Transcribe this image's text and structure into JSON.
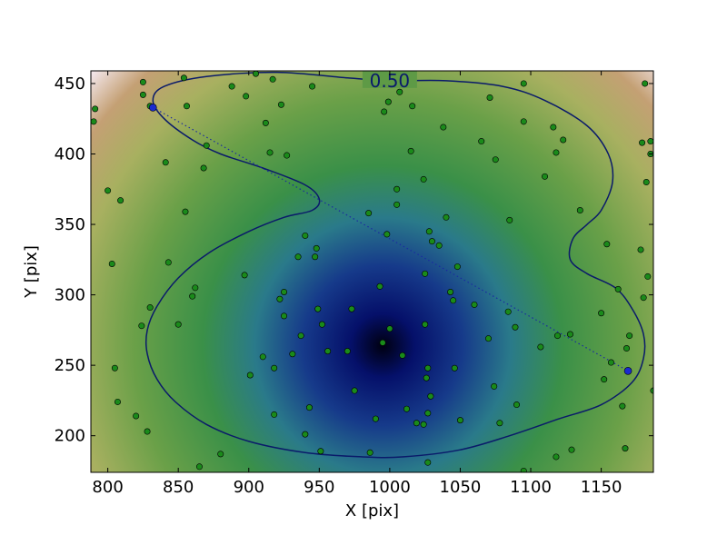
{
  "chart_data": {
    "type": "scatter",
    "title": "",
    "xlabel": "X [pix]",
    "ylabel": "Y [pix]",
    "xlim": [
      788,
      1187
    ],
    "ylim": [
      174,
      459
    ],
    "xticks": [
      800,
      850,
      900,
      950,
      1000,
      1050,
      1100,
      1150
    ],
    "yticks": [
      200,
      250,
      300,
      350,
      400,
      450
    ],
    "grid": false,
    "legend": "none",
    "colormap": "gist_earth",
    "background_minimum": [
      995,
      264
    ],
    "contour": {
      "level_label": "0.50",
      "color": "#0a1a6a",
      "path": [
        [
          1000,
          452
        ],
        [
          1040,
          452
        ],
        [
          1080,
          448
        ],
        [
          1110,
          438
        ],
        [
          1140,
          420
        ],
        [
          1155,
          400
        ],
        [
          1158,
          380
        ],
        [
          1150,
          360
        ],
        [
          1140,
          350
        ],
        [
          1130,
          340
        ],
        [
          1128,
          325
        ],
        [
          1140,
          315
        ],
        [
          1160,
          305
        ],
        [
          1172,
          290
        ],
        [
          1180,
          272
        ],
        [
          1180,
          255
        ],
        [
          1172,
          238
        ],
        [
          1150,
          222
        ],
        [
          1120,
          212
        ],
        [
          1085,
          200
        ],
        [
          1050,
          190
        ],
        [
          1010,
          185
        ],
        [
          980,
          185
        ],
        [
          940,
          188
        ],
        [
          900,
          196
        ],
        [
          870,
          208
        ],
        [
          848,
          224
        ],
        [
          835,
          240
        ],
        [
          828,
          258
        ],
        [
          828,
          275
        ],
        [
          835,
          292
        ],
        [
          850,
          312
        ],
        [
          872,
          330
        ],
        [
          900,
          345
        ],
        [
          925,
          355
        ],
        [
          945,
          360
        ],
        [
          950,
          368
        ],
        [
          940,
          378
        ],
        [
          910,
          390
        ],
        [
          880,
          400
        ],
        [
          860,
          410
        ],
        [
          840,
          425
        ],
        [
          832,
          438
        ],
        [
          840,
          448
        ],
        [
          870,
          455
        ],
        [
          920,
          458
        ],
        [
          970,
          454
        ],
        [
          1000,
          452
        ]
      ]
    },
    "dotted_line": {
      "color": "#1a2aa0",
      "start": [
        832,
        433
      ],
      "end": [
        1169,
        246
      ]
    },
    "series": [
      {
        "marker_color": "#1a8a1a",
        "points": [
          [
            790,
            423
          ],
          [
            791,
            432
          ],
          [
            800,
            374
          ],
          [
            803,
            322
          ],
          [
            805,
            248
          ],
          [
            807,
            224
          ],
          [
            809,
            367
          ],
          [
            820,
            214
          ],
          [
            824,
            278
          ],
          [
            825,
            451
          ],
          [
            825,
            442
          ],
          [
            828,
            203
          ],
          [
            830,
            291
          ],
          [
            830,
            434
          ],
          [
            841,
            394
          ],
          [
            843,
            323
          ],
          [
            850,
            279
          ],
          [
            854,
            454
          ],
          [
            855,
            359
          ],
          [
            856,
            434
          ],
          [
            860,
            299
          ],
          [
            862,
            305
          ],
          [
            865,
            178
          ],
          [
            868,
            390
          ],
          [
            870,
            406
          ],
          [
            880,
            187
          ],
          [
            888,
            448
          ],
          [
            897,
            314
          ],
          [
            898,
            441
          ],
          [
            901,
            243
          ],
          [
            905,
            457
          ],
          [
            910,
            256
          ],
          [
            912,
            422
          ],
          [
            915,
            401
          ],
          [
            917,
            453
          ],
          [
            918,
            248
          ],
          [
            918,
            215
          ],
          [
            922,
            297
          ],
          [
            923,
            435
          ],
          [
            925,
            302
          ],
          [
            925,
            285
          ],
          [
            927,
            399
          ],
          [
            931,
            258
          ],
          [
            935,
            327
          ],
          [
            937,
            271
          ],
          [
            940,
            342
          ],
          [
            940,
            201
          ],
          [
            943,
            220
          ],
          [
            945,
            448
          ],
          [
            947,
            327
          ],
          [
            948,
            333
          ],
          [
            949,
            290
          ],
          [
            951,
            189
          ],
          [
            952,
            279
          ],
          [
            956,
            260
          ],
          [
            970,
            260
          ],
          [
            973,
            290
          ],
          [
            975,
            232
          ],
          [
            985,
            358
          ],
          [
            986,
            188
          ],
          [
            990,
            212
          ],
          [
            993,
            306
          ],
          [
            995,
            266
          ],
          [
            996,
            430
          ],
          [
            998,
            343
          ],
          [
            999,
            437
          ],
          [
            1000,
            276
          ],
          [
            1005,
            364
          ],
          [
            1005,
            375
          ],
          [
            1007,
            444
          ],
          [
            1009,
            257
          ],
          [
            1012,
            219
          ],
          [
            1015,
            402
          ],
          [
            1016,
            434
          ],
          [
            1019,
            209
          ],
          [
            1024,
            208
          ],
          [
            1024,
            382
          ],
          [
            1025,
            279
          ],
          [
            1025,
            315
          ],
          [
            1026,
            241
          ],
          [
            1027,
            248
          ],
          [
            1027,
            181
          ],
          [
            1027,
            216
          ],
          [
            1028,
            345
          ],
          [
            1029,
            228
          ],
          [
            1030,
            338
          ],
          [
            1035,
            335
          ],
          [
            1038,
            419
          ],
          [
            1040,
            355
          ],
          [
            1043,
            302
          ],
          [
            1045,
            296
          ],
          [
            1046,
            248
          ],
          [
            1048,
            320
          ],
          [
            1050,
            211
          ],
          [
            1060,
            293
          ],
          [
            1065,
            409
          ],
          [
            1070,
            269
          ],
          [
            1071,
            440
          ],
          [
            1074,
            235
          ],
          [
            1075,
            396
          ],
          [
            1078,
            209
          ],
          [
            1084,
            288
          ],
          [
            1085,
            353
          ],
          [
            1089,
            277
          ],
          [
            1090,
            222
          ],
          [
            1095,
            450
          ],
          [
            1095,
            423
          ],
          [
            1095,
            175
          ],
          [
            1107,
            263
          ],
          [
            1110,
            384
          ],
          [
            1116,
            419
          ],
          [
            1118,
            185
          ],
          [
            1118,
            401
          ],
          [
            1119,
            271
          ],
          [
            1123,
            410
          ],
          [
            1128,
            272
          ],
          [
            1129,
            190
          ],
          [
            1135,
            360
          ],
          [
            1150,
            287
          ],
          [
            1152,
            240
          ],
          [
            1154,
            336
          ],
          [
            1157,
            252
          ],
          [
            1162,
            304
          ],
          [
            1165,
            221
          ],
          [
            1167,
            191
          ],
          [
            1168,
            262
          ],
          [
            1170,
            271
          ],
          [
            1178,
            332
          ],
          [
            1179,
            408
          ],
          [
            1180,
            298
          ],
          [
            1181,
            450
          ],
          [
            1182,
            380
          ],
          [
            1183,
            313
          ],
          [
            1185,
            409
          ],
          [
            1185,
            400
          ],
          [
            1187,
            232
          ]
        ]
      },
      {
        "marker_color": "#1a2ad0",
        "points": [
          [
            832,
            433
          ],
          [
            1169,
            246
          ]
        ]
      }
    ]
  }
}
